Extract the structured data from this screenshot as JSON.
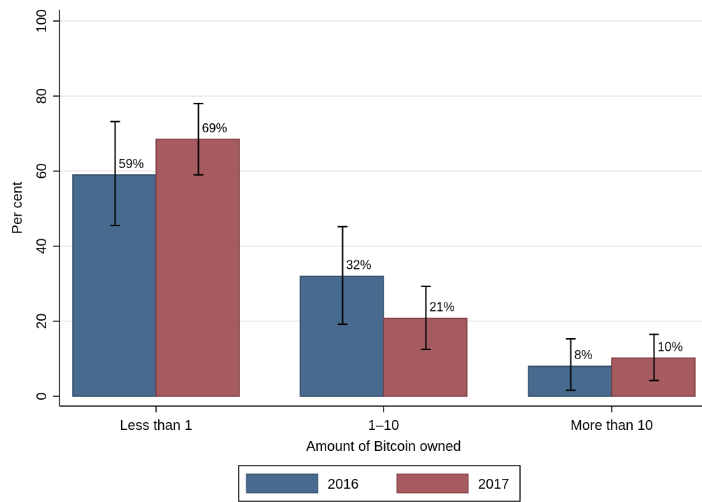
{
  "chart_data": {
    "type": "bar",
    "categories": [
      "Less than 1",
      "1–10",
      "More than 10"
    ],
    "series": [
      {
        "name": "2016",
        "color": "#486a8e",
        "values": [
          59,
          32,
          8
        ],
        "labels": [
          "59%",
          "32%",
          "8%"
        ],
        "ci_low": [
          45.5,
          19.2,
          1.6
        ],
        "ci_high": [
          73.2,
          45.2,
          15.3
        ]
      },
      {
        "name": "2017",
        "color": "#a55b5f",
        "values": [
          68.5,
          20.8,
          10.2
        ],
        "labels": [
          "69%",
          "21%",
          "10%"
        ],
        "ci_low": [
          59.0,
          12.5,
          4.2
        ],
        "ci_high": [
          78.0,
          29.3,
          16.5
        ]
      }
    ],
    "xlabel": "Amount of Bitcoin owned",
    "ylabel": "Per cent",
    "ylim": [
      0,
      100
    ],
    "yticks": [
      0,
      20,
      40,
      60,
      80,
      100
    ],
    "grid": true,
    "legend_position": "bottom"
  }
}
